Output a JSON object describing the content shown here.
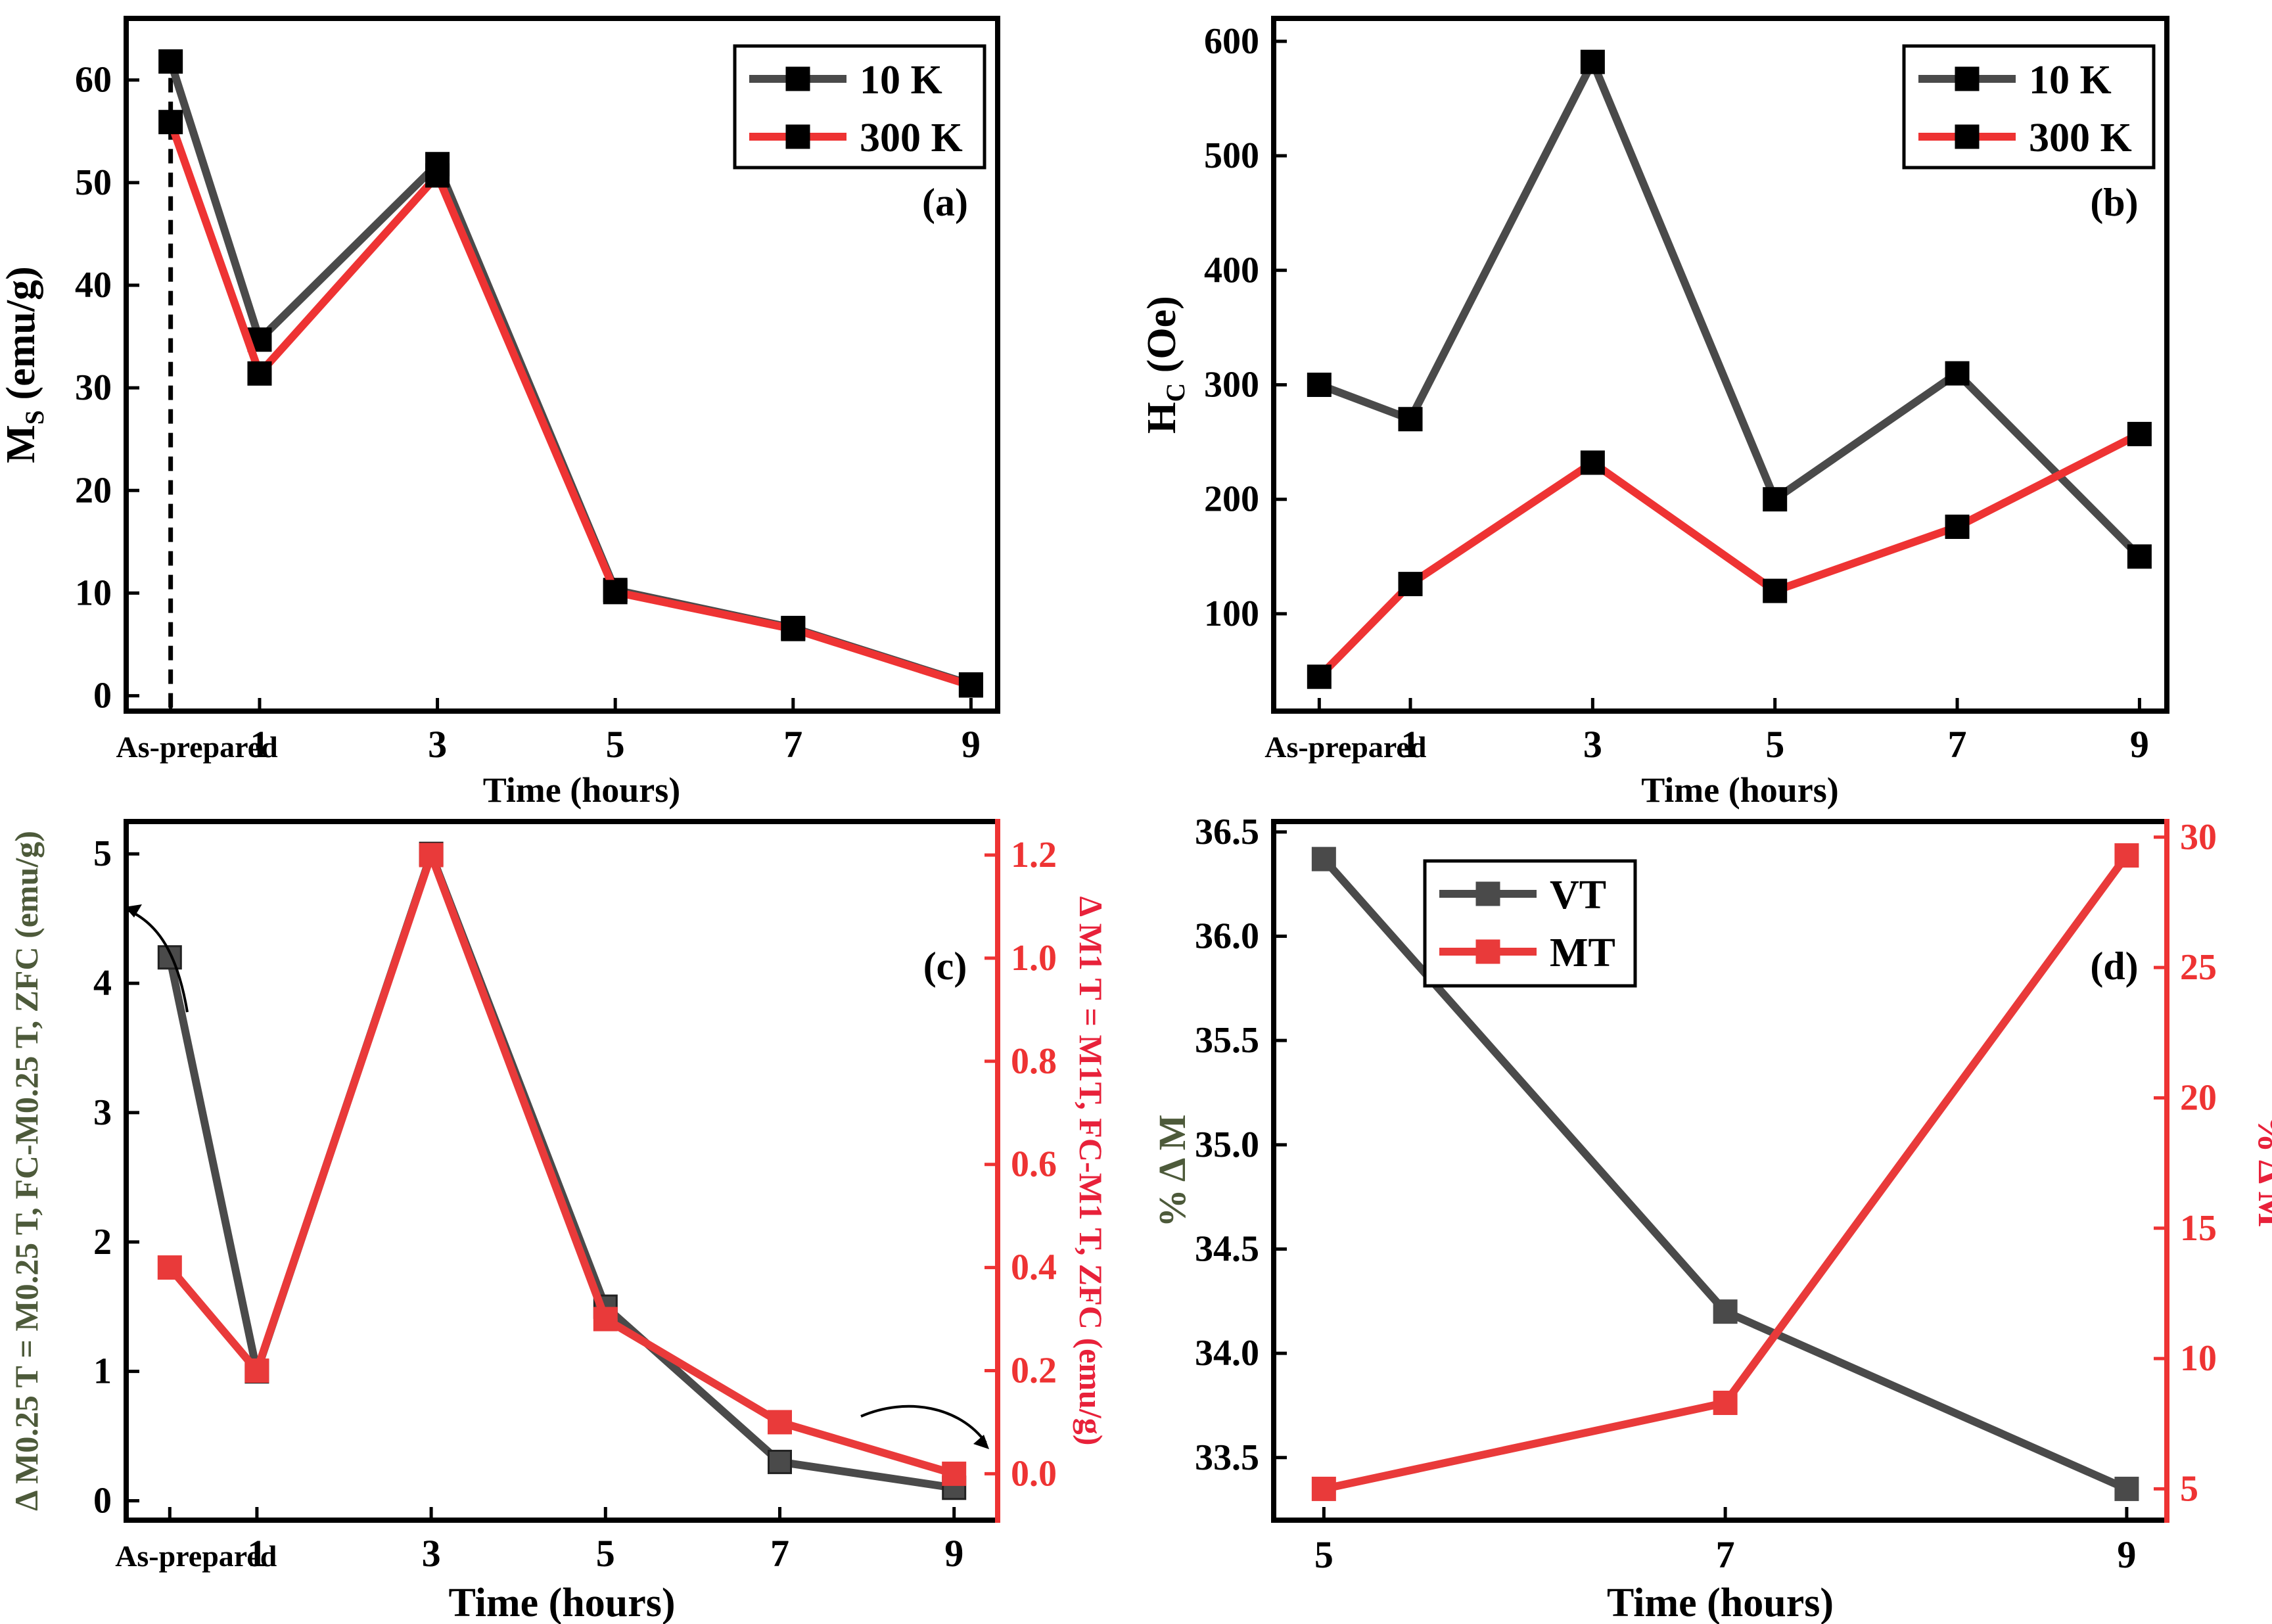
{
  "colors": {
    "gray": "#4a4a4a",
    "black": "#000000",
    "red": "#ee3333",
    "mtred": "#e93a3a",
    "greenlabel": "#4d5a3a",
    "redlabel": "#e8213a"
  },
  "chart_data": [
    {
      "id": "a",
      "type": "line",
      "panel_label": "(a)",
      "ylabel_main": "M",
      "ylabel_sub": "S",
      "ylabel_tail": " (emu/g)",
      "xlabel": "Time (hours)",
      "x": [
        0,
        1,
        3,
        5,
        7,
        9
      ],
      "xlim": [
        -0.5,
        9.3
      ],
      "ylim": [
        -1.5,
        66
      ],
      "xticks": [
        {
          "v": 0,
          "label": "As-prepared"
        },
        {
          "v": 1,
          "label": "1"
        },
        {
          "v": 3,
          "label": "3"
        },
        {
          "v": 5,
          "label": "5"
        },
        {
          "v": 7,
          "label": "7"
        },
        {
          "v": 9,
          "label": "9"
        }
      ],
      "yticks": [
        0,
        10,
        20,
        30,
        40,
        50,
        60
      ],
      "vline_x": 0,
      "series": [
        {
          "name": "10 K",
          "values": [
            61.8,
            34.7,
            51.8,
            10.3,
            6.6,
            1.1
          ]
        },
        {
          "name": "300 K",
          "values": [
            55.9,
            31.4,
            50.7,
            10.1,
            6.5,
            1.0
          ]
        }
      ],
      "legend": [
        "10 K",
        "300 K"
      ],
      "legend_position": "top-right"
    },
    {
      "id": "b",
      "type": "line",
      "panel_label": "(b)",
      "ylabel_main": "H",
      "ylabel_sub": "C",
      "ylabel_tail": " (Oe)",
      "xlabel": "Time (hours)",
      "x": [
        0,
        1,
        3,
        5,
        7,
        9
      ],
      "xlim": [
        -0.5,
        9.3
      ],
      "ylim": [
        15,
        620
      ],
      "xticks": [
        {
          "v": 0,
          "label": "As-prepared"
        },
        {
          "v": 1,
          "label": "1"
        },
        {
          "v": 3,
          "label": "3"
        },
        {
          "v": 5,
          "label": "5"
        },
        {
          "v": 7,
          "label": "7"
        },
        {
          "v": 9,
          "label": "9"
        }
      ],
      "yticks": [
        100,
        200,
        300,
        400,
        500,
        600
      ],
      "series": [
        {
          "name": "10 K",
          "values": [
            300,
            270,
            582,
            200,
            310,
            150
          ]
        },
        {
          "name": "300 K",
          "values": [
            45,
            126,
            232,
            120,
            176,
            257
          ]
        }
      ],
      "legend": [
        "10 K",
        "300 K"
      ],
      "legend_position": "top-right"
    },
    {
      "id": "c",
      "type": "line",
      "panel_label": "(c)",
      "ylabel_left": "Δ M0.25 T = M0.25 T, FC-M0.25 T, ZFC (emu/g)",
      "ylabel_right": "Δ M1 T = M1T, FC-M1 T, ZFC (emu/g)",
      "xlabel": "Time (hours)",
      "x": [
        0,
        1,
        3,
        5,
        7,
        9
      ],
      "xlim": [
        -0.5,
        9.5
      ],
      "ylim_left": [
        -0.15,
        5.25
      ],
      "ylim_right": [
        -0.09,
        1.265
      ],
      "xticks": [
        {
          "v": 0,
          "label": "As-prepared"
        },
        {
          "v": 1,
          "label": "1"
        },
        {
          "v": 3,
          "label": "3"
        },
        {
          "v": 5,
          "label": "5"
        },
        {
          "v": 7,
          "label": "7"
        },
        {
          "v": 9,
          "label": "9"
        }
      ],
      "yticks_left": [
        0,
        1,
        2,
        3,
        4,
        5
      ],
      "yticks_right": [
        0.0,
        0.2,
        0.4,
        0.6,
        0.8,
        1.0,
        1.2
      ],
      "series": [
        {
          "name": "ΔM 0.25 T (left axis)",
          "axis": "left",
          "values": [
            4.2,
            1.0,
            5.0,
            1.5,
            0.3,
            0.1
          ]
        },
        {
          "name": "ΔM 1 T (right axis)",
          "axis": "right",
          "values": [
            0.4,
            0.2,
            1.2,
            0.3,
            0.1,
            0.0
          ]
        }
      ]
    },
    {
      "id": "d",
      "type": "line",
      "panel_label": "(d)",
      "ylabel_left": "% Δ M",
      "ylabel_right": "% Δ M",
      "xlabel": "Time (hours)",
      "x": [
        5,
        7,
        9
      ],
      "xlim": [
        4.75,
        9.2
      ],
      "ylim_left": [
        33.2,
        36.55
      ],
      "ylim_right": [
        3.8,
        30.6
      ],
      "xticks": [
        {
          "v": 5,
          "label": "5"
        },
        {
          "v": 7,
          "label": "7"
        },
        {
          "v": 9,
          "label": "9"
        }
      ],
      "yticks_left": [
        33.5,
        34.0,
        34.5,
        35.0,
        35.5,
        36.0,
        36.5
      ],
      "yticks_right": [
        5,
        10,
        15,
        20,
        25,
        30
      ],
      "series": [
        {
          "name": "VT",
          "axis": "left",
          "values": [
            36.37,
            34.2,
            33.35
          ]
        },
        {
          "name": "MT",
          "axis": "right",
          "values": [
            5.0,
            8.3,
            29.3
          ]
        }
      ],
      "legend": [
        "VT",
        "MT"
      ],
      "legend_position": "top-left"
    }
  ]
}
